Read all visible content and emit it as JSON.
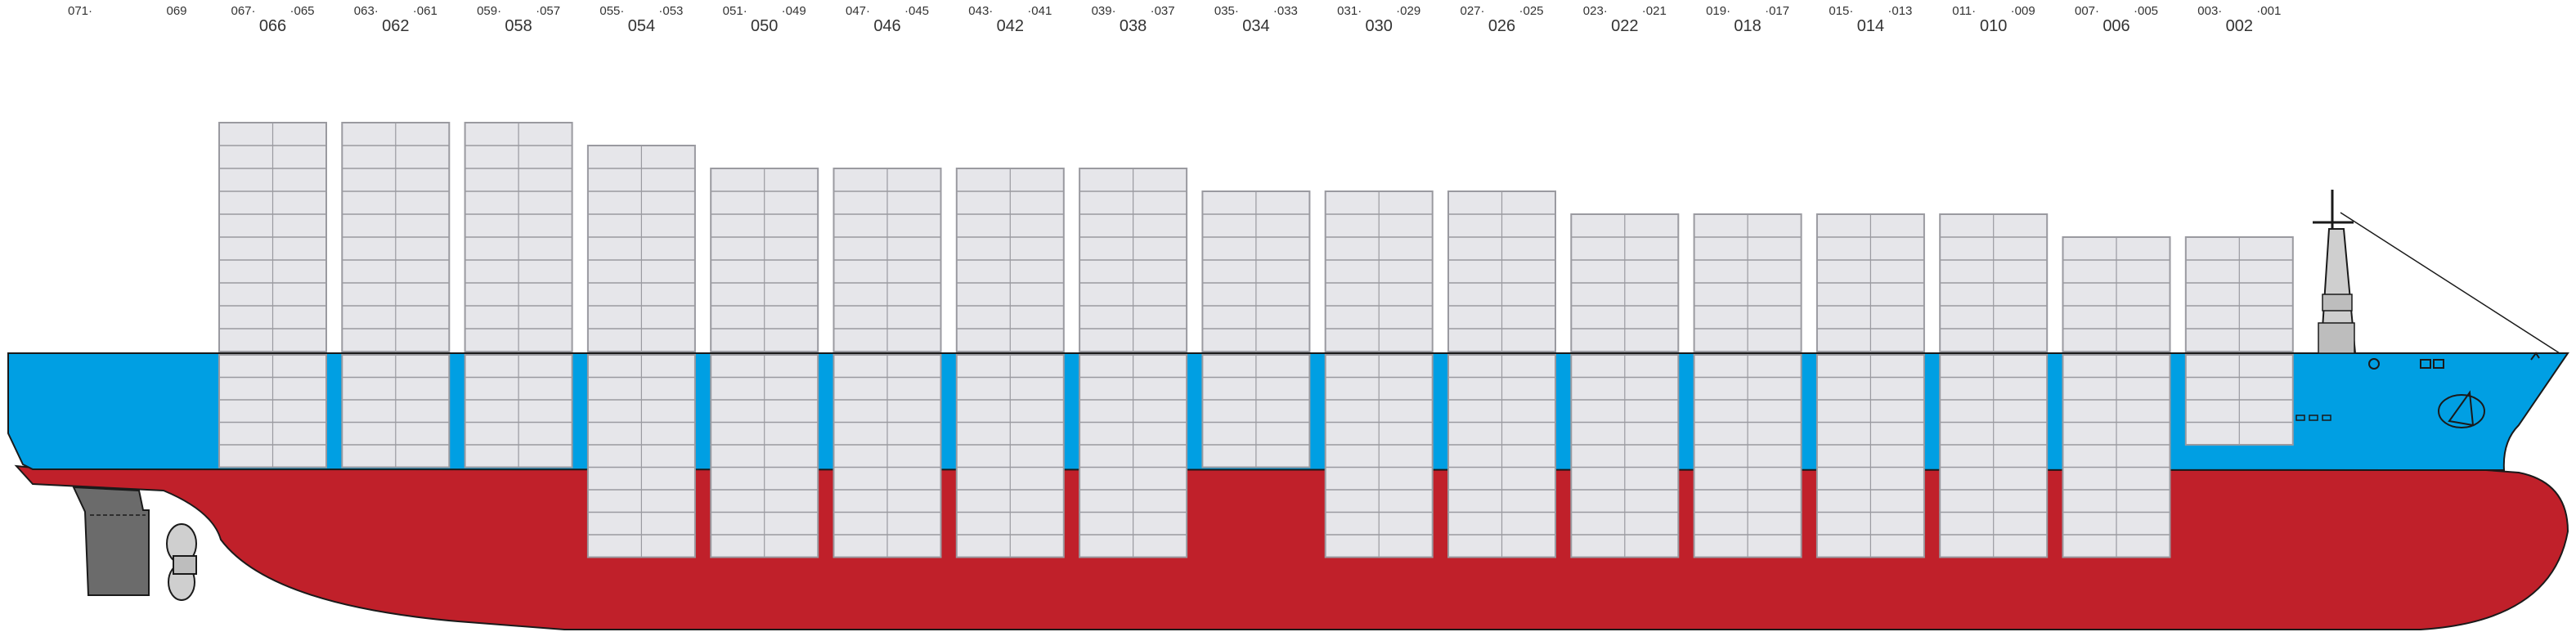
{
  "colors": {
    "deck_blue": "#009fe3",
    "hull_red": "#c0202a",
    "container_fill": "#e6e6ea",
    "container_stroke": "#9a9aa0",
    "outline": "#1a1a1a",
    "rudder_grey": "#6b6b6b",
    "text": "#333333"
  },
  "bays": [
    {
      "label": "066",
      "fore": "065",
      "aft": "067"
    },
    {
      "label": "062",
      "fore": "061",
      "aft": "063"
    },
    {
      "label": "058",
      "fore": "057",
      "aft": "059"
    },
    {
      "label": "054",
      "fore": "053",
      "aft": "055"
    },
    {
      "label": "050",
      "fore": "049",
      "aft": "051"
    },
    {
      "label": "046",
      "fore": "045",
      "aft": "047"
    },
    {
      "label": "042",
      "fore": "041",
      "aft": "043"
    },
    {
      "label": "038",
      "fore": "037",
      "aft": "039"
    },
    {
      "label": "034",
      "fore": "033",
      "aft": "035"
    },
    {
      "label": "030",
      "fore": "029",
      "aft": "031"
    },
    {
      "label": "026",
      "fore": "025",
      "aft": "027"
    },
    {
      "label": "022",
      "fore": "021",
      "aft": "023"
    },
    {
      "label": "018",
      "fore": "017",
      "aft": "019"
    },
    {
      "label": "014",
      "fore": "013",
      "aft": "015"
    },
    {
      "label": "010",
      "fore": "009",
      "aft": "011"
    },
    {
      "label": "006",
      "fore": "005",
      "aft": "007"
    },
    {
      "label": "002",
      "fore": "001",
      "aft": "003"
    }
  ],
  "stern_labels": [
    "071",
    "069"
  ],
  "deck_tiers": [
    10,
    10,
    10,
    9,
    8,
    8,
    8,
    8,
    7,
    7,
    7,
    6,
    6,
    6,
    6,
    5,
    5
  ],
  "hold_tiers": [
    5,
    5,
    5,
    9,
    9,
    9,
    9,
    9,
    5,
    9,
    9,
    9,
    9,
    9,
    9,
    9,
    4
  ]
}
